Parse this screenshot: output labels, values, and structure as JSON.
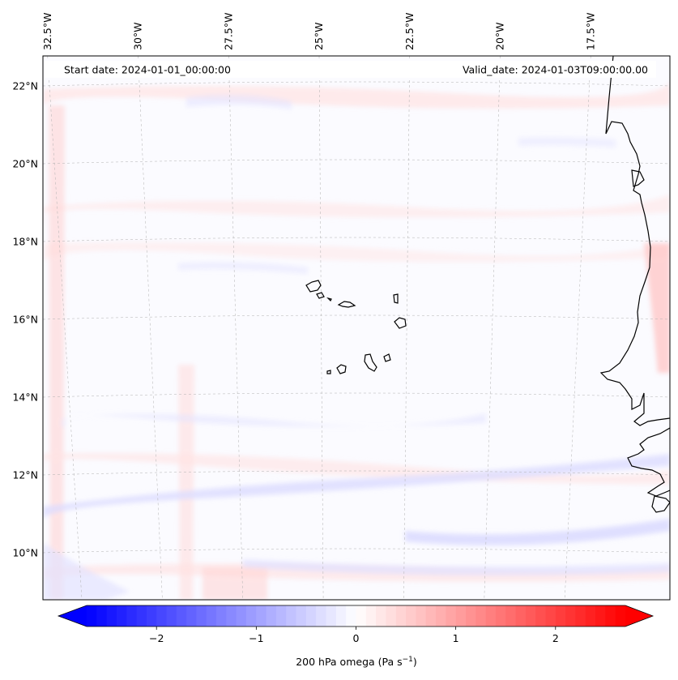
{
  "map": {
    "start_date": "Start date: 2024-01-01_00:00:00",
    "valid_date": "Valid_date: 2024-01-03T09:00:00.00",
    "lon_labels": [
      {
        "text": "32.5°W",
        "lon": -32.5
      },
      {
        "text": "30°W",
        "lon": -30.0
      },
      {
        "text": "27.5°W",
        "lon": -27.5
      },
      {
        "text": "25°W",
        "lon": -25.0
      },
      {
        "text": "22.5°W",
        "lon": -22.5
      },
      {
        "text": "20°W",
        "lon": -20.0
      },
      {
        "text": "17.5°W",
        "lon": -17.5
      }
    ],
    "lat_labels": [
      {
        "text": "22°N",
        "lat": 22
      },
      {
        "text": "20°N",
        "lat": 20
      },
      {
        "text": "18°N",
        "lat": 18
      },
      {
        "text": "16°N",
        "lat": 16
      },
      {
        "text": "14°N",
        "lat": 14
      },
      {
        "text": "12°N",
        "lat": 12
      },
      {
        "text": "10°N",
        "lat": 10
      }
    ],
    "colors": {
      "coastline": "#000000",
      "gridline": "#b0b0b0",
      "positive": "#ff0000",
      "negative": "#0000ff"
    }
  },
  "colorbar": {
    "label": "200 hPa omega (Pa s",
    "label_sup": "−1",
    "label_close": ")",
    "range": [
      -2.7,
      2.7
    ],
    "ticks": [
      {
        "text": "−2",
        "value": -2
      },
      {
        "text": "−1",
        "value": -1
      },
      {
        "text": "0",
        "value": 0
      },
      {
        "text": "1",
        "value": 1
      },
      {
        "text": "2",
        "value": 2
      }
    ]
  }
}
